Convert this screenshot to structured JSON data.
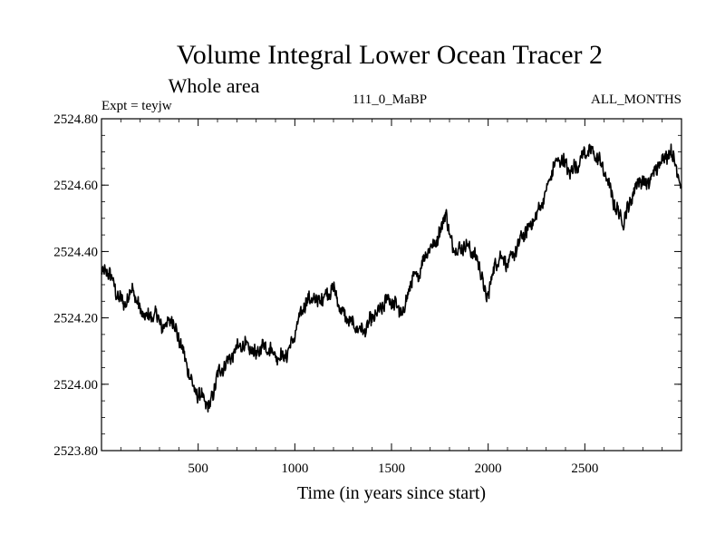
{
  "chart_data": {
    "type": "line",
    "title": "Volume Integral Lower Ocean Tracer 2",
    "subtitle": "Whole area",
    "info_left": "Expt = teyjw",
    "info_center": "111_0_MaBP",
    "info_right": "ALL_MONTHS",
    "xlabel": "Time (in years since start)",
    "ylabel": "",
    "xlim": [
      0,
      3000
    ],
    "ylim": [
      2523.8,
      2524.8
    ],
    "x_ticks": [
      500,
      1000,
      1500,
      2000,
      2500
    ],
    "x_tick_labels": [
      "500",
      "1000",
      "1500",
      "2000",
      "2500"
    ],
    "y_ticks": [
      2523.8,
      2524.0,
      2524.2,
      2524.4,
      2524.6,
      2524.8
    ],
    "y_tick_labels": [
      "2523.80",
      "2524.00",
      "2524.20",
      "2524.40",
      "2524.60",
      "2524.80"
    ],
    "line_color": "#000000",
    "series": [
      {
        "name": "Volume Integral Lower Ocean Tracer 2",
        "x": [
          0,
          40,
          80,
          120,
          160,
          200,
          240,
          280,
          320,
          360,
          400,
          440,
          480,
          520,
          560,
          600,
          640,
          680,
          720,
          760,
          800,
          840,
          880,
          920,
          960,
          1000,
          1040,
          1080,
          1120,
          1160,
          1200,
          1240,
          1280,
          1320,
          1360,
          1400,
          1440,
          1480,
          1520,
          1560,
          1600,
          1640,
          1680,
          1720,
          1760,
          1780,
          1800,
          1840,
          1880,
          1920,
          1960,
          1990,
          2020,
          2060,
          2100,
          2140,
          2180,
          2220,
          2260,
          2300,
          2340,
          2380,
          2420,
          2460,
          2500,
          2540,
          2580,
          2620,
          2660,
          2700,
          2740,
          2780,
          2820,
          2860,
          2900,
          2940,
          2970,
          3000
        ],
        "values": [
          2524.33,
          2524.34,
          2524.27,
          2524.24,
          2524.29,
          2524.22,
          2524.2,
          2524.21,
          2524.17,
          2524.2,
          2524.14,
          2524.06,
          2523.98,
          2523.96,
          2523.93,
          2524.03,
          2524.06,
          2524.09,
          2524.12,
          2524.11,
          2524.09,
          2524.12,
          2524.1,
          2524.08,
          2524.09,
          2524.15,
          2524.23,
          2524.26,
          2524.25,
          2524.27,
          2524.29,
          2524.22,
          2524.19,
          2524.17,
          2524.16,
          2524.2,
          2524.22,
          2524.26,
          2524.24,
          2524.21,
          2524.31,
          2524.33,
          2524.4,
          2524.42,
          2524.47,
          2524.53,
          2524.44,
          2524.4,
          2524.42,
          2524.4,
          2524.35,
          2524.25,
          2524.33,
          2524.39,
          2524.36,
          2524.4,
          2524.45,
          2524.48,
          2524.52,
          2524.58,
          2524.66,
          2524.68,
          2524.64,
          2524.66,
          2524.7,
          2524.7,
          2524.67,
          2524.61,
          2524.53,
          2524.49,
          2524.56,
          2524.62,
          2524.6,
          2524.64,
          2524.68,
          2524.7,
          2524.67,
          2524.58
        ]
      }
    ]
  }
}
